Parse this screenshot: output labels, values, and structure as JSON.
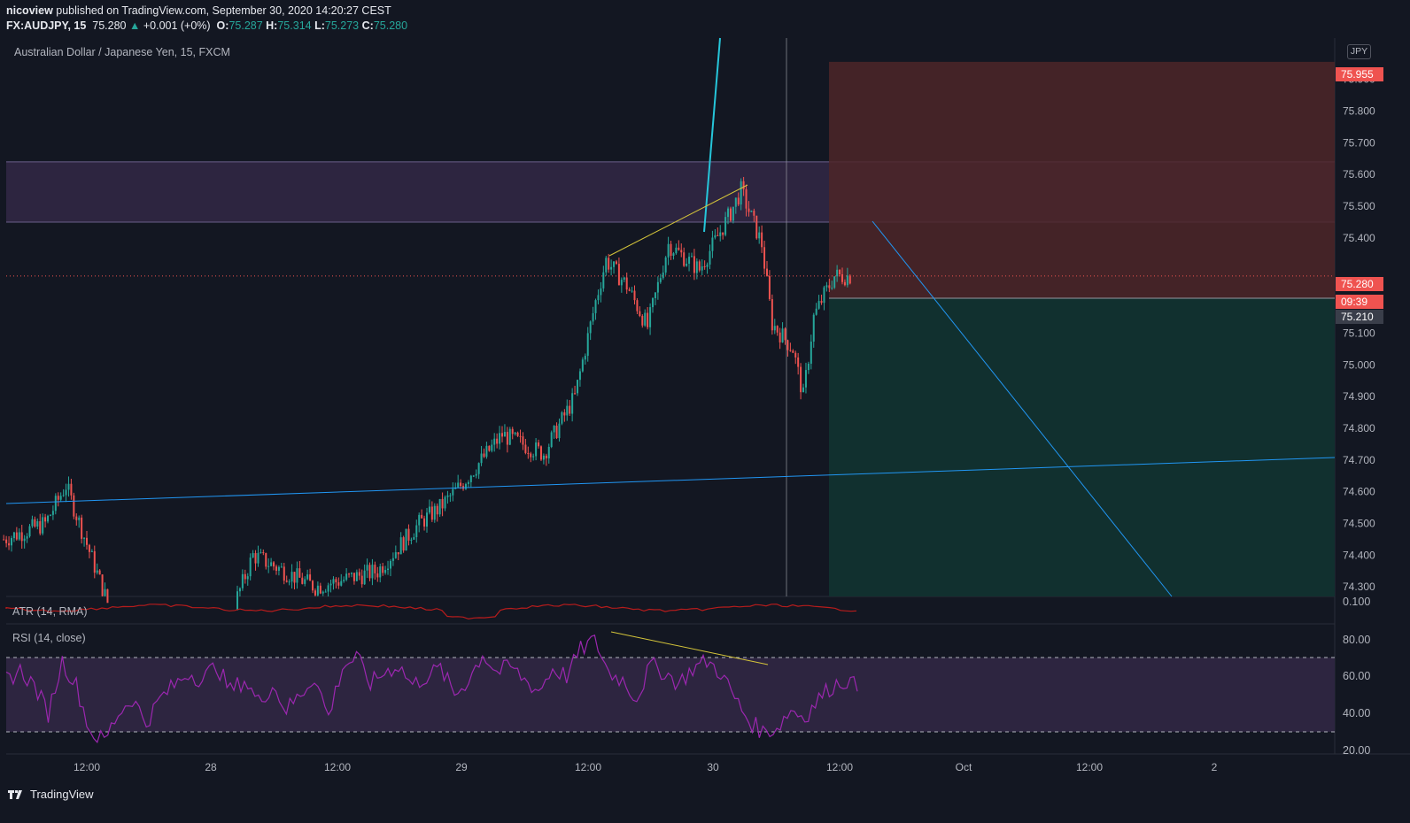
{
  "header": {
    "publisher": "nicoview",
    "published_text": "published on TradingView.com, September 30, 2020 14:20:27 CEST",
    "symbol": "FX:AUDJPY, 15",
    "last": "75.280",
    "change": "+0.001 (+0%)",
    "o_label": "O:",
    "o_value": "75.287",
    "h_label": "H:",
    "h_value": "75.314",
    "l_label": "L:",
    "l_value": "75.273",
    "c_label": "C:",
    "c_value": "75.280"
  },
  "main_pane": {
    "title": "Australian Dollar / Japanese Yen, 15, FXCM",
    "currency_badge": "JPY",
    "tags": {
      "stop": "75.955",
      "last": "75.280",
      "countdown": "09:39",
      "entry": "75.210"
    }
  },
  "atr_pane": {
    "title": "ATR (14, RMA)",
    "tick": "0.100"
  },
  "rsi_pane": {
    "title": "RSI (14, close)",
    "ticks": [
      "80.00",
      "60.00",
      "40.00",
      "20.00"
    ]
  },
  "footer": {
    "brand": "TradingView"
  },
  "colors": {
    "background": "#131722",
    "up": "#26a69a",
    "down": "#ef5350",
    "zone": "#2d2540",
    "stop_zone": "#4d2628",
    "target_zone": "#11302f",
    "trendline": "#2196f3",
    "divergence": "#d4c43a",
    "rsi": "#9c27b0",
    "atr": "#b71c1c"
  },
  "chart_data": [
    {
      "type": "candlestick",
      "title": "Australian Dollar / Japanese Yen, 15, FXCM",
      "x_ticks": [
        "12:00",
        "28",
        "12:00",
        "29",
        "12:00",
        "30",
        "12:00",
        "Oct",
        "12:00",
        "2"
      ],
      "y_ticks": [
        75.9,
        75.8,
        75.7,
        75.6,
        75.5,
        75.4,
        75.1,
        75.0,
        74.9,
        74.8,
        74.7,
        74.6,
        74.5,
        74.4,
        74.3
      ],
      "ylim": [
        74.27,
        76.03
      ],
      "close_path_approx": [
        {
          "t": "27 04:00",
          "c": 74.45
        },
        {
          "t": "27 08:00",
          "c": 74.5
        },
        {
          "t": "27 10:00",
          "c": 74.62
        },
        {
          "t": "27 14:00",
          "c": 74.25
        },
        {
          "t": "28 00:00",
          "c": 74.05
        },
        {
          "t": "28 04:00",
          "c": 74.4
        },
        {
          "t": "28 10:00",
          "c": 74.3
        },
        {
          "t": "28 16:00",
          "c": 74.35
        },
        {
          "t": "28 20:00",
          "c": 74.5
        },
        {
          "t": "28 22:00",
          "c": 74.55
        },
        {
          "t": "29 00:00",
          "c": 74.62
        },
        {
          "t": "29 04:00",
          "c": 74.78
        },
        {
          "t": "29 08:00",
          "c": 74.72
        },
        {
          "t": "29 11:00",
          "c": 74.9
        },
        {
          "t": "29 13:00",
          "c": 75.2
        },
        {
          "t": "29 14:00",
          "c": 75.33
        },
        {
          "t": "29 16:00",
          "c": 75.25
        },
        {
          "t": "29 18:00",
          "c": 75.12
        },
        {
          "t": "29 20:00",
          "c": 75.38
        },
        {
          "t": "29 23:00",
          "c": 75.3
        },
        {
          "t": "30 02:00",
          "c": 75.48
        },
        {
          "t": "30 03:00",
          "c": 75.55
        },
        {
          "t": "30 05:00",
          "c": 75.38
        },
        {
          "t": "30 06:00",
          "c": 75.13
        },
        {
          "t": "30 08:00",
          "c": 75.05
        },
        {
          "t": "30 09:00",
          "c": 74.9
        },
        {
          "t": "30 10:00",
          "c": 75.15
        },
        {
          "t": "30 11:00",
          "c": 75.22
        },
        {
          "t": "30 12:00",
          "c": 75.28
        },
        {
          "t": "30 13:30",
          "c": 75.28
        }
      ],
      "last_price": 75.28,
      "short_position": {
        "stop": 75.955,
        "entry": 75.21,
        "target_below": 74.27
      },
      "resistance_zone": [
        75.45,
        75.64
      ]
    },
    {
      "type": "line",
      "title": "ATR (14, RMA)",
      "y_ticks": [
        0.1
      ]
    },
    {
      "type": "line",
      "title": "RSI (14, close)",
      "y_ticks": [
        80,
        60,
        40,
        20
      ],
      "bands": [
        70,
        30
      ],
      "values_approx": [
        58,
        63,
        55,
        40,
        68,
        55,
        30,
        25,
        40,
        48,
        35,
        48,
        55,
        62,
        58,
        66,
        52,
        58,
        46,
        55,
        42,
        50,
        60,
        38,
        65,
        70,
        56,
        62,
        66,
        55,
        60,
        64,
        50,
        58,
        72,
        62,
        65,
        58,
        52,
        64,
        60,
        74,
        80,
        62,
        58,
        48,
        66,
        62,
        56,
        64,
        68,
        62,
        48,
        36,
        30,
        32,
        42,
        38,
        48,
        55,
        58,
        52
      ]
    }
  ]
}
